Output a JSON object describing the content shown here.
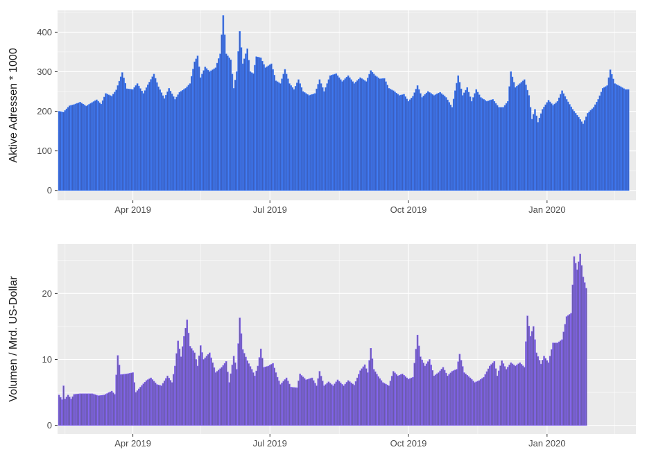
{
  "chart_data": [
    {
      "type": "bar",
      "ylabel": "Aktive Adressen * 1000",
      "xlabel": "",
      "title": "",
      "x_start": "2019-02-10",
      "x_end": "2020-02-29",
      "x_ticks": [
        {
          "date": "2019-04-01",
          "label": "Apr 2019"
        },
        {
          "date": "2019-07-01",
          "label": "Jul 2019"
        },
        {
          "date": "2019-10-01",
          "label": "Oct 2019"
        },
        {
          "date": "2020-01-01",
          "label": "Jan 2020"
        }
      ],
      "y_ticks": [
        0,
        100,
        200,
        300,
        400
      ],
      "ylim": [
        -25,
        455
      ],
      "grid": true,
      "bar_color": "#3a5fc0",
      "bar_outline": "#3f7fff",
      "panel_background": "#ebebeb",
      "keyframes": [
        [
          "2019-02-11",
          200
        ],
        [
          "2019-02-14",
          198
        ],
        [
          "2019-02-18",
          214
        ],
        [
          "2019-02-21",
          217
        ],
        [
          "2019-02-25",
          223
        ],
        [
          "2019-03-01",
          213
        ],
        [
          "2019-03-04",
          220
        ],
        [
          "2019-03-08",
          229
        ],
        [
          "2019-03-11",
          218
        ],
        [
          "2019-03-14",
          245
        ],
        [
          "2019-03-18",
          238
        ],
        [
          "2019-03-21",
          254
        ],
        [
          "2019-03-25",
          298
        ],
        [
          "2019-03-28",
          257
        ],
        [
          "2019-04-01",
          255
        ],
        [
          "2019-04-04",
          270
        ],
        [
          "2019-04-08",
          245
        ],
        [
          "2019-04-11",
          267
        ],
        [
          "2019-04-15",
          294
        ],
        [
          "2019-04-18",
          262
        ],
        [
          "2019-04-22",
          232
        ],
        [
          "2019-04-25",
          258
        ],
        [
          "2019-04-29",
          230
        ],
        [
          "2019-05-02",
          248
        ],
        [
          "2019-05-06",
          258
        ],
        [
          "2019-05-09",
          270
        ],
        [
          "2019-05-12",
          325
        ],
        [
          "2019-05-14",
          340
        ],
        [
          "2019-05-16",
          285
        ],
        [
          "2019-05-19",
          312
        ],
        [
          "2019-05-22",
          300
        ],
        [
          "2019-05-26",
          310
        ],
        [
          "2019-05-29",
          345
        ],
        [
          "2019-05-31",
          442
        ],
        [
          "2019-06-02",
          345
        ],
        [
          "2019-06-05",
          330
        ],
        [
          "2019-06-07",
          258
        ],
        [
          "2019-06-09",
          300
        ],
        [
          "2019-06-11",
          402
        ],
        [
          "2019-06-13",
          320
        ],
        [
          "2019-06-16",
          358
        ],
        [
          "2019-06-18",
          300
        ],
        [
          "2019-06-20",
          295
        ],
        [
          "2019-06-22",
          338
        ],
        [
          "2019-06-25",
          335
        ],
        [
          "2019-06-28",
          310
        ],
        [
          "2019-07-02",
          320
        ],
        [
          "2019-07-05",
          277
        ],
        [
          "2019-07-08",
          270
        ],
        [
          "2019-07-11",
          306
        ],
        [
          "2019-07-14",
          270
        ],
        [
          "2019-07-17",
          255
        ],
        [
          "2019-07-20",
          280
        ],
        [
          "2019-07-23",
          250
        ],
        [
          "2019-07-27",
          240
        ],
        [
          "2019-07-31",
          245
        ],
        [
          "2019-08-03",
          280
        ],
        [
          "2019-08-06",
          250
        ],
        [
          "2019-08-10",
          290
        ],
        [
          "2019-08-14",
          295
        ],
        [
          "2019-08-18",
          275
        ],
        [
          "2019-08-22",
          290
        ],
        [
          "2019-08-26",
          270
        ],
        [
          "2019-08-30",
          285
        ],
        [
          "2019-09-03",
          275
        ],
        [
          "2019-09-06",
          303
        ],
        [
          "2019-09-09",
          290
        ],
        [
          "2019-09-12",
          282
        ],
        [
          "2019-09-15",
          283
        ],
        [
          "2019-09-18",
          258
        ],
        [
          "2019-09-21",
          252
        ],
        [
          "2019-09-25",
          240
        ],
        [
          "2019-09-28",
          243
        ],
        [
          "2019-10-01",
          225
        ],
        [
          "2019-10-04",
          238
        ],
        [
          "2019-10-07",
          265
        ],
        [
          "2019-10-10",
          235
        ],
        [
          "2019-10-14",
          250
        ],
        [
          "2019-10-18",
          240
        ],
        [
          "2019-10-22",
          248
        ],
        [
          "2019-10-26",
          235
        ],
        [
          "2019-10-30",
          210
        ],
        [
          "2019-11-01",
          252
        ],
        [
          "2019-11-03",
          290
        ],
        [
          "2019-11-06",
          240
        ],
        [
          "2019-11-09",
          260
        ],
        [
          "2019-11-12",
          225
        ],
        [
          "2019-11-15",
          255
        ],
        [
          "2019-11-18",
          235
        ],
        [
          "2019-11-22",
          225
        ],
        [
          "2019-11-26",
          230
        ],
        [
          "2019-11-30",
          210
        ],
        [
          "2019-12-03",
          210
        ],
        [
          "2019-12-06",
          225
        ],
        [
          "2019-12-08",
          300
        ],
        [
          "2019-12-11",
          260
        ],
        [
          "2019-12-14",
          270
        ],
        [
          "2019-12-17",
          280
        ],
        [
          "2019-12-20",
          240
        ],
        [
          "2019-12-22",
          180
        ],
        [
          "2019-12-24",
          205
        ],
        [
          "2019-12-26",
          172
        ],
        [
          "2019-12-29",
          205
        ],
        [
          "2020-01-02",
          228
        ],
        [
          "2020-01-05",
          215
        ],
        [
          "2020-01-08",
          225
        ],
        [
          "2020-01-11",
          252
        ],
        [
          "2020-01-14",
          230
        ],
        [
          "2020-01-18",
          205
        ],
        [
          "2020-01-22",
          185
        ],
        [
          "2020-01-25",
          168
        ],
        [
          "2020-01-28",
          195
        ],
        [
          "2020-02-01",
          210
        ],
        [
          "2020-02-04",
          230
        ],
        [
          "2020-02-07",
          258
        ],
        [
          "2020-02-10",
          265
        ],
        [
          "2020-02-12",
          305
        ],
        [
          "2020-02-15",
          270
        ],
        [
          "2020-02-19",
          262
        ],
        [
          "2020-02-22",
          255
        ],
        [
          "2020-02-24",
          255
        ]
      ]
    },
    {
      "type": "bar",
      "ylabel": "Volumen / Mrd. US-Dollar",
      "xlabel": "",
      "title": "",
      "x_start": "2019-02-10",
      "x_end": "2020-02-29",
      "x_ticks": [
        {
          "date": "2019-04-01",
          "label": "Apr 2019"
        },
        {
          "date": "2019-07-01",
          "label": "Jul 2019"
        },
        {
          "date": "2019-10-01",
          "label": "Oct 2019"
        },
        {
          "date": "2020-01-01",
          "label": "Jan 2020"
        }
      ],
      "y_ticks": [
        0,
        10,
        20
      ],
      "ylim": [
        -1.3,
        27.5
      ],
      "grid": true,
      "bar_color": "#6a5aa8",
      "bar_outline": "#8866ff",
      "panel_background": "#ebebeb",
      "keyframes": [
        [
          "2019-02-11",
          4.6
        ],
        [
          "2019-02-13",
          3.9
        ],
        [
          "2019-02-14",
          6.0
        ],
        [
          "2019-02-15",
          4.0
        ],
        [
          "2019-02-17",
          4.6
        ],
        [
          "2019-02-19",
          4.0
        ],
        [
          "2019-02-21",
          4.7
        ],
        [
          "2019-02-25",
          4.8
        ],
        [
          "2019-03-01",
          4.8
        ],
        [
          "2019-03-05",
          4.8
        ],
        [
          "2019-03-09",
          4.5
        ],
        [
          "2019-03-13",
          4.6
        ],
        [
          "2019-03-18",
          5.2
        ],
        [
          "2019-03-20",
          4.7
        ],
        [
          "2019-03-22",
          10.6
        ],
        [
          "2019-03-24",
          7.7
        ],
        [
          "2019-03-28",
          7.8
        ],
        [
          "2019-04-01",
          8.0
        ],
        [
          "2019-04-03",
          5.0
        ],
        [
          "2019-04-06",
          5.8
        ],
        [
          "2019-04-10",
          6.8
        ],
        [
          "2019-04-13",
          7.2
        ],
        [
          "2019-04-17",
          6.2
        ],
        [
          "2019-04-20",
          6.0
        ],
        [
          "2019-04-24",
          7.5
        ],
        [
          "2019-04-27",
          6.5
        ],
        [
          "2019-04-29",
          9.0
        ],
        [
          "2019-05-01",
          12.8
        ],
        [
          "2019-05-03",
          10.4
        ],
        [
          "2019-05-05",
          13.5
        ],
        [
          "2019-05-07",
          16.0
        ],
        [
          "2019-05-09",
          12.0
        ],
        [
          "2019-05-12",
          11.0
        ],
        [
          "2019-05-14",
          9.0
        ],
        [
          "2019-05-16",
          12.1
        ],
        [
          "2019-05-18",
          10.0
        ],
        [
          "2019-05-22",
          11.0
        ],
        [
          "2019-05-26",
          8.0
        ],
        [
          "2019-05-30",
          8.8
        ],
        [
          "2019-06-02",
          9.7
        ],
        [
          "2019-06-04",
          6.5
        ],
        [
          "2019-06-07",
          10.5
        ],
        [
          "2019-06-09",
          8.5
        ],
        [
          "2019-06-11",
          16.3
        ],
        [
          "2019-06-13",
          11.5
        ],
        [
          "2019-06-16",
          9.8
        ],
        [
          "2019-06-19",
          8.5
        ],
        [
          "2019-06-21",
          7.5
        ],
        [
          "2019-06-23",
          9.0
        ],
        [
          "2019-06-25",
          11.6
        ],
        [
          "2019-06-27",
          8.8
        ],
        [
          "2019-06-30",
          9.0
        ],
        [
          "2019-07-03",
          9.4
        ],
        [
          "2019-07-06",
          7.3
        ],
        [
          "2019-07-08",
          6.2
        ],
        [
          "2019-07-12",
          7.2
        ],
        [
          "2019-07-15",
          5.8
        ],
        [
          "2019-07-19",
          5.7
        ],
        [
          "2019-07-21",
          7.8
        ],
        [
          "2019-07-25",
          6.9
        ],
        [
          "2019-07-29",
          7.2
        ],
        [
          "2019-08-01",
          6.0
        ],
        [
          "2019-08-03",
          8.2
        ],
        [
          "2019-08-06",
          6.0
        ],
        [
          "2019-08-09",
          6.6
        ],
        [
          "2019-08-12",
          6.0
        ],
        [
          "2019-08-15",
          6.9
        ],
        [
          "2019-08-19",
          6.0
        ],
        [
          "2019-08-22",
          6.8
        ],
        [
          "2019-08-26",
          6.1
        ],
        [
          "2019-08-30",
          8.3
        ],
        [
          "2019-09-02",
          9.2
        ],
        [
          "2019-09-04",
          8.0
        ],
        [
          "2019-09-06",
          11.7
        ],
        [
          "2019-09-08",
          8.5
        ],
        [
          "2019-09-11",
          7.4
        ],
        [
          "2019-09-14",
          6.5
        ],
        [
          "2019-09-18",
          6.0
        ],
        [
          "2019-09-21",
          8.2
        ],
        [
          "2019-09-24",
          7.5
        ],
        [
          "2019-09-27",
          7.8
        ],
        [
          "2019-10-01",
          7.0
        ],
        [
          "2019-10-04",
          7.3
        ],
        [
          "2019-10-07",
          13.7
        ],
        [
          "2019-10-09",
          10.4
        ],
        [
          "2019-10-12",
          9.0
        ],
        [
          "2019-10-15",
          10.0
        ],
        [
          "2019-10-18",
          7.5
        ],
        [
          "2019-10-21",
          8.0
        ],
        [
          "2019-10-24",
          8.8
        ],
        [
          "2019-10-27",
          7.5
        ],
        [
          "2019-10-30",
          8.2
        ],
        [
          "2019-11-02",
          8.5
        ],
        [
          "2019-11-04",
          10.8
        ],
        [
          "2019-11-07",
          8.0
        ],
        [
          "2019-11-11",
          7.2
        ],
        [
          "2019-11-14",
          6.5
        ],
        [
          "2019-11-17",
          6.8
        ],
        [
          "2019-11-20",
          7.3
        ],
        [
          "2019-11-24",
          9.0
        ],
        [
          "2019-11-27",
          9.7
        ],
        [
          "2019-11-29",
          7.5
        ],
        [
          "2019-12-02",
          9.8
        ],
        [
          "2019-12-05",
          8.5
        ],
        [
          "2019-12-08",
          9.5
        ],
        [
          "2019-12-11",
          9.0
        ],
        [
          "2019-12-14",
          9.5
        ],
        [
          "2019-12-17",
          8.8
        ],
        [
          "2019-12-19",
          16.6
        ],
        [
          "2019-12-21",
          13.5
        ],
        [
          "2019-12-23",
          15.0
        ],
        [
          "2019-12-25",
          11.0
        ],
        [
          "2019-12-28",
          9.3
        ],
        [
          "2019-12-30",
          10.5
        ],
        [
          "2020-01-02",
          9.5
        ],
        [
          "2020-01-05",
          12.5
        ],
        [
          "2020-01-08",
          12.5
        ],
        [
          "2020-01-11",
          13.0
        ],
        [
          "2020-01-14",
          16.5
        ],
        [
          "2020-01-17",
          17.0
        ],
        [
          "2020-01-19",
          25.6
        ],
        [
          "2020-01-21",
          23.6
        ],
        [
          "2020-01-23",
          26.0
        ],
        [
          "2020-01-25",
          22.5
        ],
        [
          "2020-01-27",
          20.8
        ]
      ]
    }
  ]
}
